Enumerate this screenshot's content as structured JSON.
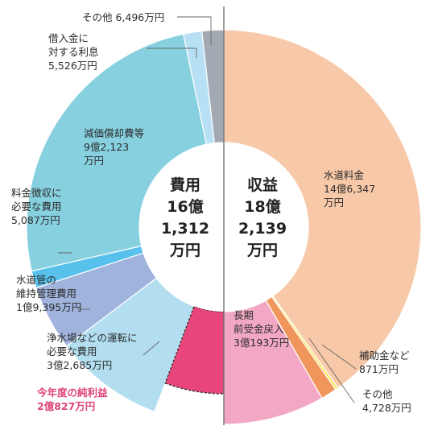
{
  "chart_data": {
    "type": "pie",
    "unit": "万円",
    "halves": [
      {
        "key": "expense",
        "center_label": [
          "費用",
          "16億",
          "1,312",
          "万円"
        ],
        "segments": [
          {
            "name": "その他",
            "value": 6496,
            "value_label": "6,496万円",
            "color": "#a3a9b2"
          },
          {
            "name": "借入金に対する利息",
            "value": 5526,
            "value_label": "5,526万円",
            "color": "#b8e0f4"
          },
          {
            "name": "減価償却費等",
            "value": 92123,
            "value_label": "9億2,123万円",
            "color": "#86d0df"
          },
          {
            "name": "料金徴収に必要な費用",
            "value": 5087,
            "value_label": "5,087万円",
            "color": "#57c1ec"
          },
          {
            "name": "水道管の維持管理費用",
            "value": 19395,
            "value_label": "1億9,395万円",
            "color": "#9fb3dd"
          },
          {
            "name": "浄水場などの運転に必要な費用",
            "value": 32685,
            "value_label": "3億2,685万円",
            "color": "#b2def0"
          },
          {
            "name": "今年度の純利益",
            "value": 20827,
            "value_label": "2億827万円",
            "color": "#e8457c",
            "highlight": true
          }
        ]
      },
      {
        "key": "revenue",
        "center_label": [
          "収益",
          "18億",
          "2,139",
          "万円"
        ],
        "segments": [
          {
            "name": "水道料金",
            "value": 146347,
            "value_label": "14億6,347万円",
            "color": "#f8c9a8"
          },
          {
            "name": "補助金など",
            "value": 871,
            "value_label": "871万円",
            "color": "#f7e65c"
          },
          {
            "name": "その他",
            "value": 4728,
            "value_label": "4,728万円",
            "color": "#f0955c"
          },
          {
            "name": "長期前受金戻入",
            "value": 30193,
            "value_label": "3億193万円",
            "color": "#f2a8c4"
          }
        ]
      }
    ],
    "callouts": [
      {
        "half": 0,
        "seg": 0,
        "lines": [
          "その他 6,496万円"
        ]
      },
      {
        "half": 0,
        "seg": 1,
        "lines": [
          "借入金に",
          "対する利息",
          "5,526万円"
        ]
      },
      {
        "half": 0,
        "seg": 2,
        "lines": [
          "減価償却費等",
          "9億2,123",
          "万円"
        ]
      },
      {
        "half": 0,
        "seg": 3,
        "lines": [
          "料金徴収に",
          "必要な費用",
          "5,087万円"
        ]
      },
      {
        "half": 0,
        "seg": 4,
        "lines": [
          "水道管の",
          "維持管理費用",
          "1億9,395万円"
        ]
      },
      {
        "half": 0,
        "seg": 5,
        "lines": [
          "浄水場などの運転に",
          "必要な費用",
          "3億2,685万円"
        ]
      },
      {
        "half": 0,
        "seg": 6,
        "lines": [
          "今年度の純利益",
          "2億827万円"
        ]
      },
      {
        "half": 1,
        "seg": 0,
        "lines": [
          "水道料金",
          "14億6,347",
          "万円"
        ]
      },
      {
        "half": 1,
        "seg": 1,
        "lines": [
          "補助金など",
          "871万円"
        ]
      },
      {
        "half": 1,
        "seg": 2,
        "lines": [
          "その他",
          "4,728万円"
        ]
      },
      {
        "half": 1,
        "seg": 3,
        "lines": [
          "長期",
          "前受金戻入",
          "3億193万円"
        ]
      }
    ]
  }
}
